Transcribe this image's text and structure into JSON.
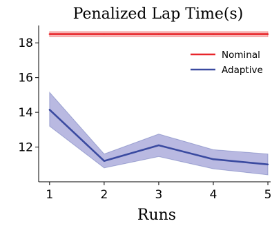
{
  "chart_data": {
    "type": "line",
    "title": "Penalized Lap Time(s)",
    "xlabel": "Runs",
    "ylabel": "",
    "x": [
      1,
      2,
      3,
      4,
      5
    ],
    "xlim": [
      0.8,
      5.05
    ],
    "ylim": [
      10.0,
      19.0
    ],
    "x_ticks": [
      1,
      2,
      3,
      4,
      5
    ],
    "y_ticks": [
      12,
      14,
      16,
      18
    ],
    "grid": false,
    "legend_position": "top-right",
    "series": [
      {
        "name": "Nominal",
        "color": "#e8262b",
        "band_color": "#f08080",
        "values": [
          18.5,
          18.5,
          18.5,
          18.5,
          18.5
        ],
        "lower": [
          18.35,
          18.35,
          18.35,
          18.35,
          18.35
        ],
        "upper": [
          18.65,
          18.65,
          18.65,
          18.65,
          18.65
        ]
      },
      {
        "name": "Adaptive",
        "color": "#3a4aa0",
        "band_color": "#8080c8",
        "values": [
          14.15,
          11.2,
          12.1,
          11.3,
          11.0
        ],
        "lower": [
          13.2,
          10.8,
          11.45,
          10.75,
          10.4
        ],
        "upper": [
          15.15,
          11.6,
          12.75,
          11.85,
          11.6
        ]
      }
    ]
  }
}
